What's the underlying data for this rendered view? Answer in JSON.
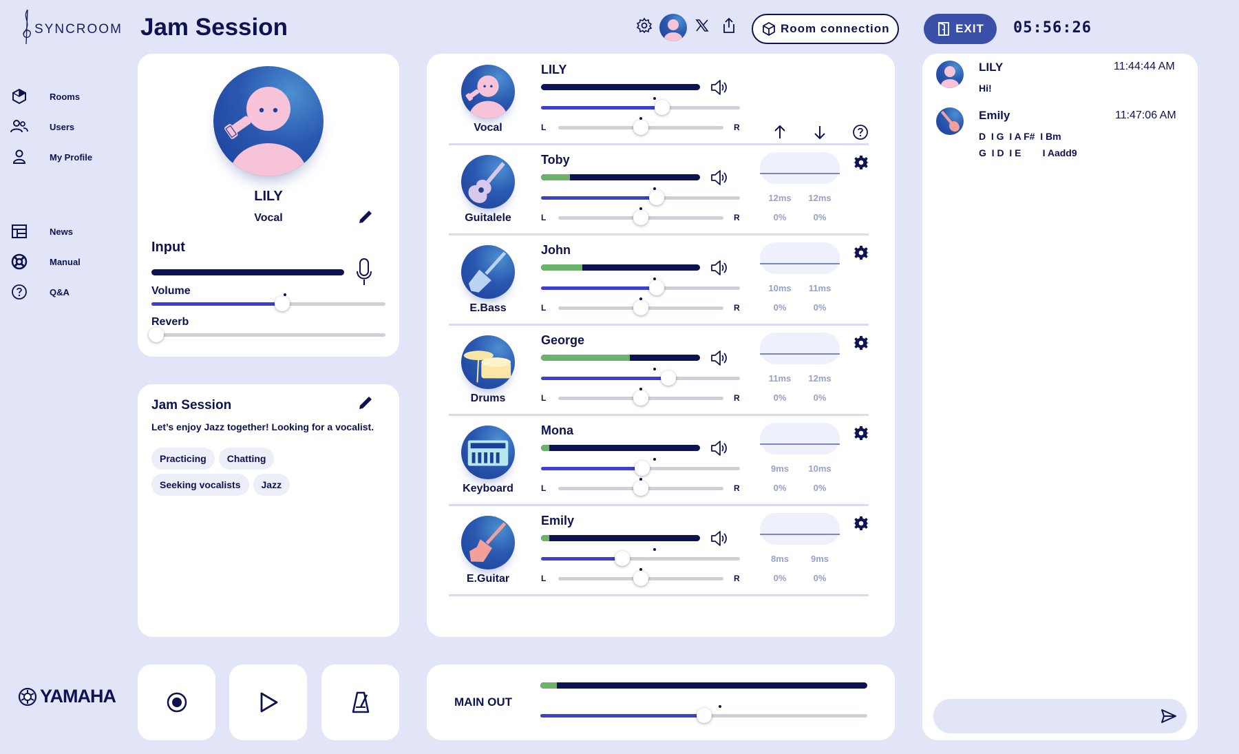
{
  "app": {
    "brand": "SYNCROOM",
    "footer_brand": "YAMAHA"
  },
  "nav": [
    {
      "label": "Rooms",
      "icon": "rooms-icon"
    },
    {
      "label": "Users",
      "icon": "users-icon"
    },
    {
      "label": "My Profile",
      "icon": "profile-icon"
    },
    {
      "label": "News",
      "icon": "news-icon"
    },
    {
      "label": "Manual",
      "icon": "manual-icon"
    },
    {
      "label": "Q&A",
      "icon": "question-icon"
    }
  ],
  "header": {
    "title": "Jam Session",
    "room_connection": "Room connection",
    "exit": "EXIT",
    "timer": "05:56:26"
  },
  "profile": {
    "name": "LILY",
    "instrument": "Vocal",
    "input_label": "Input",
    "volume_label": "Volume",
    "volume_level": 0.56,
    "reverb_label": "Reverb",
    "reverb_level": 0.0
  },
  "room": {
    "title": "Jam Session",
    "description": "Let’s enjoy Jazz together! Looking for a vocalist.",
    "tags": [
      "Practicing",
      "Chatting",
      "Seeking vocalists",
      "Jazz"
    ]
  },
  "mixer": {
    "pan_left": "L",
    "pan_right": "R",
    "players": [
      {
        "name": "LILY",
        "instrument": "Vocal",
        "meter_green": 0.0,
        "volume": 0.61,
        "pan": 0.5,
        "latency_in": "",
        "latency_out": "",
        "loss_in": "",
        "loss_out": ""
      },
      {
        "name": "Toby",
        "instrument": "Guitalele",
        "meter_green": 0.18,
        "volume": 0.58,
        "pan": 0.5,
        "latency_in": "12ms",
        "latency_out": "12ms",
        "loss_in": "0%",
        "loss_out": "0%"
      },
      {
        "name": "John",
        "instrument": "E.Bass",
        "meter_green": 0.26,
        "volume": 0.58,
        "pan": 0.5,
        "latency_in": "10ms",
        "latency_out": "11ms",
        "loss_in": "0%",
        "loss_out": "0%"
      },
      {
        "name": "George",
        "instrument": "Drums",
        "meter_green": 0.56,
        "volume": 0.64,
        "pan": 0.5,
        "latency_in": "11ms",
        "latency_out": "12ms",
        "loss_in": "0%",
        "loss_out": "0%"
      },
      {
        "name": "Mona",
        "instrument": "Keyboard",
        "meter_green": 0.05,
        "volume": 0.51,
        "pan": 0.5,
        "latency_in": "9ms",
        "latency_out": "10ms",
        "loss_in": "0%",
        "loss_out": "0%"
      },
      {
        "name": "Emily",
        "instrument": "E.Guitar",
        "meter_green": 0.05,
        "volume": 0.41,
        "pan": 0.5,
        "latency_in": "8ms",
        "latency_out": "9ms",
        "loss_in": "0%",
        "loss_out": "0%"
      }
    ]
  },
  "main_out": {
    "label": "MAIN OUT",
    "meter_green": 0.05,
    "volume": 0.5
  },
  "chat": [
    {
      "name": "LILY",
      "time": "11:44:44 AM",
      "lines": [
        "Hi!"
      ]
    },
    {
      "name": "Emily",
      "time": "11:47:06 AM",
      "lines": [
        "D  I G  I A F#  I Bm",
        "G  I D  I E        I Aadd9"
      ]
    }
  ],
  "colors": {
    "accent": "#3c3fcf",
    "dark": "#0d1250",
    "meter_green": "#6bb36b",
    "bg": "#e1e5f7"
  }
}
